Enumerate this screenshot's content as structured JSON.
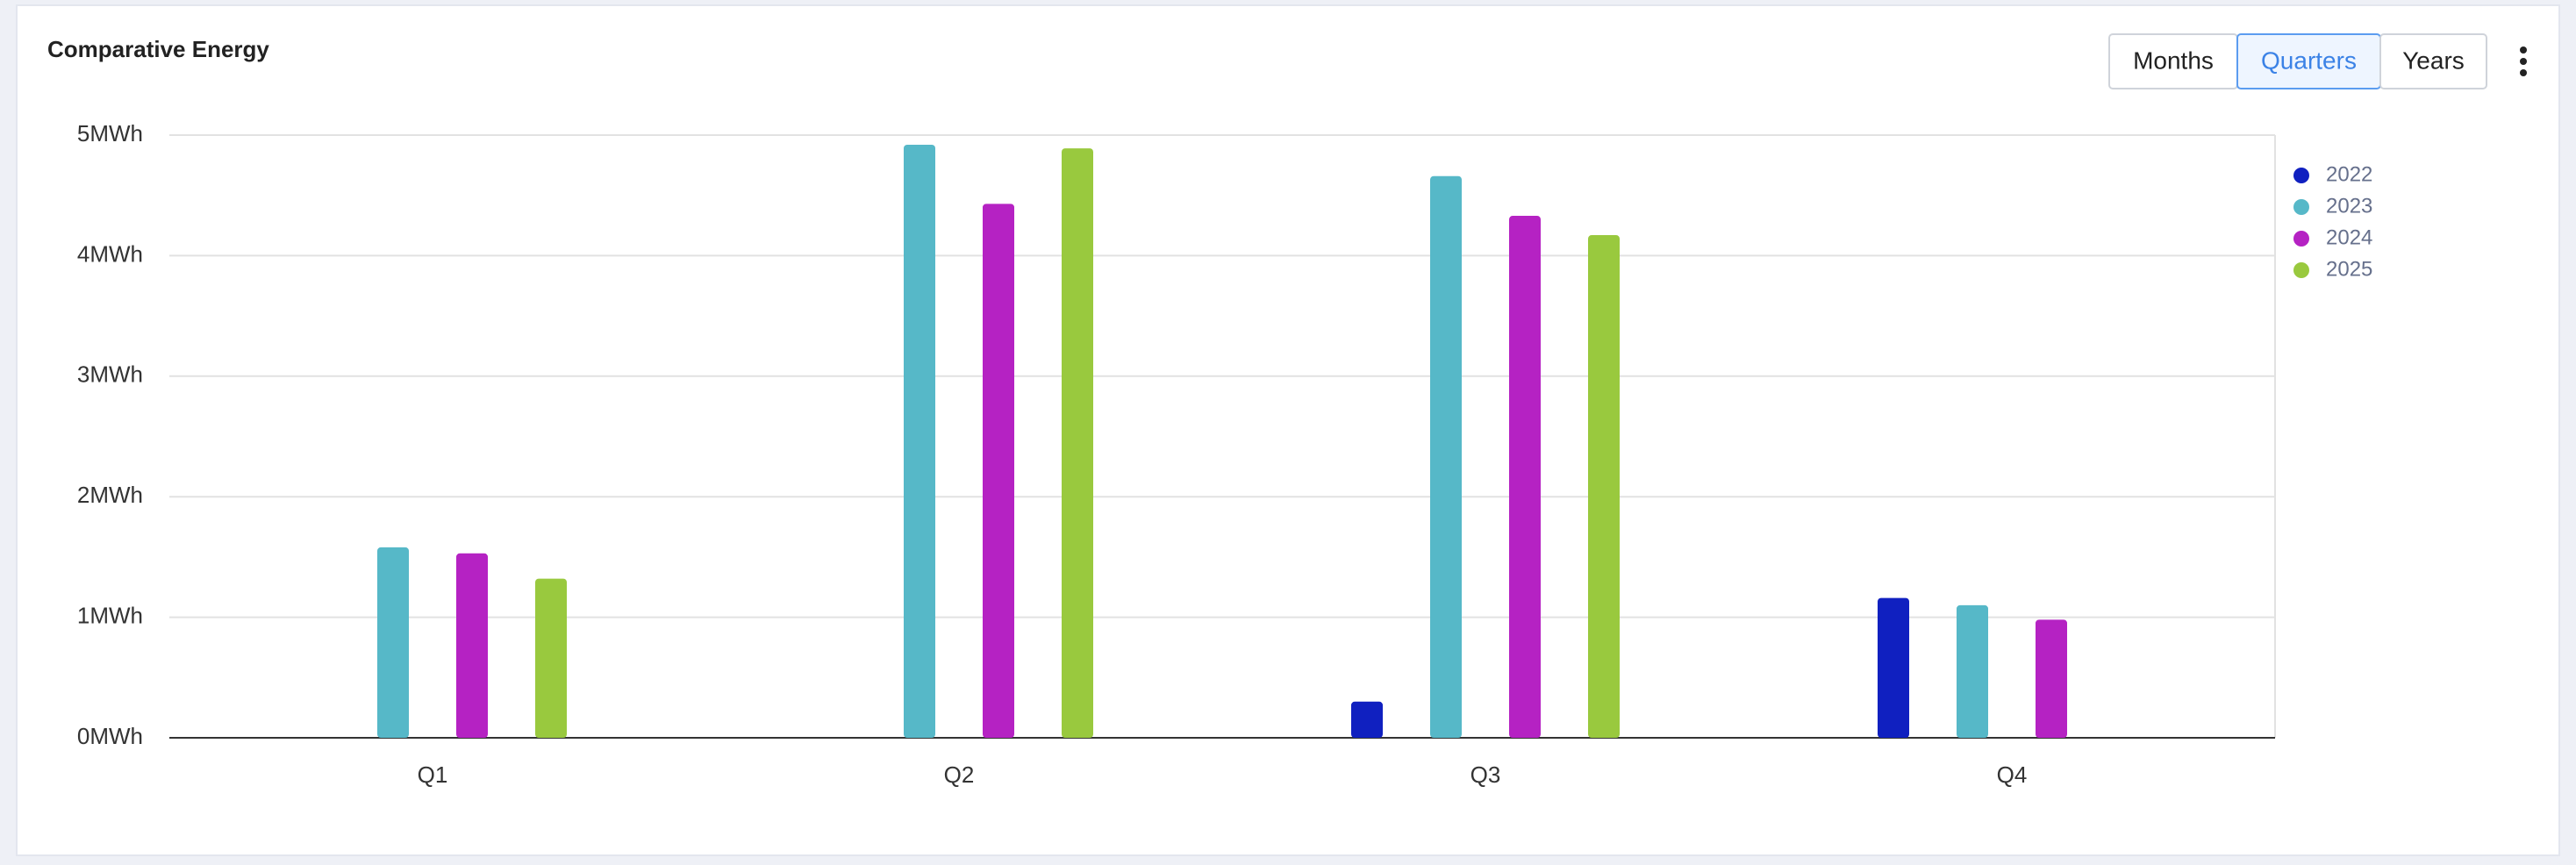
{
  "controls": {
    "buttons": [
      "Months",
      "Quarters",
      "Years"
    ],
    "active": 1
  },
  "chart_data": {
    "type": "bar",
    "title": "Comparative Energy",
    "categories": [
      "Q1",
      "Q2",
      "Q3",
      "Q4"
    ],
    "series": [
      {
        "name": "2022",
        "color": "#1020c0",
        "values": [
          null,
          null,
          0.3,
          1.16
        ]
      },
      {
        "name": "2023",
        "color": "#56b8c8",
        "values": [
          1.58,
          4.92,
          4.66,
          1.1
        ]
      },
      {
        "name": "2024",
        "color": "#b522c3",
        "values": [
          1.53,
          4.43,
          4.33,
          0.98
        ]
      },
      {
        "name": "2025",
        "color": "#99c93e",
        "values": [
          1.32,
          4.89,
          4.17,
          null
        ]
      }
    ],
    "ylim": [
      0,
      5
    ],
    "yticks": [
      {
        "value": 0,
        "label": "0MWh"
      },
      {
        "value": 1,
        "label": "1MWh"
      },
      {
        "value": 2,
        "label": "2MWh"
      },
      {
        "value": 3,
        "label": "3MWh"
      },
      {
        "value": 4,
        "label": "4MWh"
      },
      {
        "value": 5,
        "label": "5MWh"
      }
    ],
    "grid": true,
    "legend": "right"
  }
}
